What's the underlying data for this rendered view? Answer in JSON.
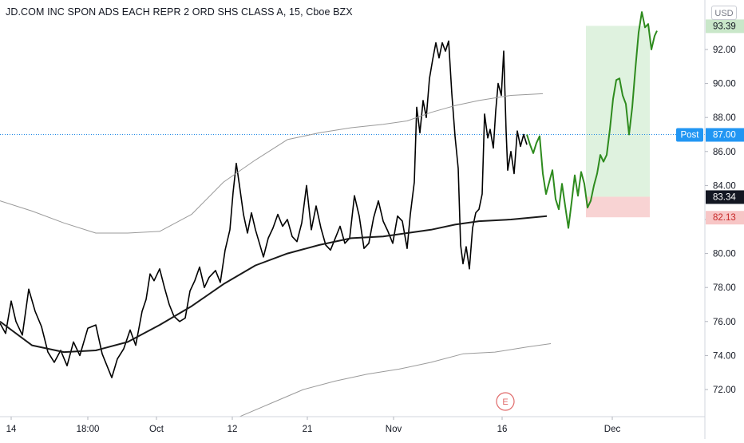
{
  "header": {
    "title": "JD.COM INC SPON ADS EACH REPR 2 ORD SHS CLASS A, 15, Cboe BZX",
    "currency": "USD"
  },
  "colors": {
    "price_line": "#000000",
    "moving_average": "#1a1a1a",
    "envelope": "#9a9a9a",
    "projection": "#2e8b1e",
    "target_zone": "#dff2df",
    "stop_zone": "#f8d3d3",
    "axis_text": "#131722",
    "grid": "#d1d4dc",
    "post_badge": "#2196f3",
    "last_price_badge": "#131722",
    "stop_badge": "#f7c6c6",
    "target_badge": "#c9e7c9",
    "earnings_marker": "#e06a6a"
  },
  "markers": {
    "earnings": "E",
    "post_label": "Post"
  },
  "chart_data": {
    "type": "line",
    "title": "JD.COM INC SPON ADS EACH REPR 2 ORD SHS CLASS A, 15, Cboe BZX",
    "xlabel": "",
    "ylabel": "",
    "ylim": [
      70.5,
      95.5
    ],
    "grid": false,
    "x_ticks": [
      "14",
      "18:00",
      "Oct",
      "12",
      "21",
      "Nov",
      "16",
      "Dec"
    ],
    "y_ticks": [
      "72.00",
      "74.00",
      "76.00",
      "78.00",
      "80.00",
      "82.00",
      "84.00",
      "86.00",
      "88.00",
      "90.00",
      "92.00"
    ],
    "series": [
      {
        "key": "price",
        "values": [
          [
            0,
            75.9
          ],
          [
            7,
            75.3
          ],
          [
            14,
            77.2
          ],
          [
            20,
            76.0
          ],
          [
            28,
            75.2
          ],
          [
            36,
            77.9
          ],
          [
            44,
            76.6
          ],
          [
            52,
            75.7
          ],
          [
            60,
            74.2
          ],
          [
            68,
            73.6
          ],
          [
            76,
            74.3
          ],
          [
            84,
            73.4
          ],
          [
            92,
            74.8
          ],
          [
            100,
            74.0
          ],
          [
            110,
            75.6
          ],
          [
            120,
            75.8
          ],
          [
            128,
            74.1
          ],
          [
            134,
            73.4
          ],
          [
            140,
            72.7
          ],
          [
            147,
            73.8
          ],
          [
            155,
            74.4
          ],
          [
            163,
            75.5
          ],
          [
            170,
            74.6
          ],
          [
            178,
            76.6
          ],
          [
            183,
            77.3
          ],
          [
            188,
            78.8
          ],
          [
            193,
            78.4
          ],
          [
            200,
            79.1
          ],
          [
            206,
            78.0
          ],
          [
            212,
            77.0
          ],
          [
            218,
            76.3
          ],
          [
            225,
            76.0
          ],
          [
            232,
            76.2
          ],
          [
            238,
            77.8
          ],
          [
            244,
            78.4
          ],
          [
            250,
            79.2
          ],
          [
            256,
            78.0
          ],
          [
            262,
            78.6
          ],
          [
            270,
            79.0
          ],
          [
            276,
            78.3
          ],
          [
            282,
            80.2
          ],
          [
            288,
            81.4
          ],
          [
            292,
            83.6
          ],
          [
            296,
            85.3
          ],
          [
            300,
            84.0
          ],
          [
            305,
            82.3
          ],
          [
            310,
            81.2
          ],
          [
            315,
            82.4
          ],
          [
            320,
            81.4
          ],
          [
            325,
            80.6
          ],
          [
            330,
            79.8
          ],
          [
            336,
            80.9
          ],
          [
            342,
            81.5
          ],
          [
            348,
            82.3
          ],
          [
            354,
            81.6
          ],
          [
            360,
            82.0
          ],
          [
            366,
            81.0
          ],
          [
            372,
            80.7
          ],
          [
            378,
            81.8
          ],
          [
            384,
            84.0
          ],
          [
            390,
            81.4
          ],
          [
            396,
            82.8
          ],
          [
            402,
            81.5
          ],
          [
            408,
            80.5
          ],
          [
            414,
            80.2
          ],
          [
            420,
            80.9
          ],
          [
            426,
            81.6
          ],
          [
            432,
            80.6
          ],
          [
            438,
            80.9
          ],
          [
            444,
            83.4
          ],
          [
            450,
            82.2
          ],
          [
            456,
            80.3
          ],
          [
            462,
            80.6
          ],
          [
            468,
            82.1
          ],
          [
            474,
            83.1
          ],
          [
            480,
            81.9
          ],
          [
            486,
            81.3
          ],
          [
            492,
            80.6
          ],
          [
            498,
            82.2
          ],
          [
            504,
            81.9
          ],
          [
            510,
            80.3
          ],
          [
            514,
            82.3
          ],
          [
            519,
            84.2
          ],
          [
            522,
            88.6
          ],
          [
            526,
            87.1
          ],
          [
            530,
            89.0
          ],
          [
            534,
            88.0
          ],
          [
            538,
            90.3
          ],
          [
            542,
            91.4
          ],
          [
            546,
            92.4
          ],
          [
            550,
            91.5
          ],
          [
            554,
            92.4
          ],
          [
            558,
            91.9
          ],
          [
            562,
            92.5
          ],
          [
            566,
            89.4
          ],
          [
            570,
            86.9
          ],
          [
            574,
            85.0
          ],
          [
            577,
            80.5
          ],
          [
            580,
            79.4
          ],
          [
            584,
            80.4
          ],
          [
            588,
            79.1
          ],
          [
            592,
            81.5
          ],
          [
            596,
            82.4
          ],
          [
            600,
            82.6
          ],
          [
            604,
            83.5
          ],
          [
            607,
            88.2
          ],
          [
            611,
            86.8
          ],
          [
            614,
            87.3
          ],
          [
            618,
            86.2
          ],
          [
            621,
            88.4
          ],
          [
            624,
            90.0
          ],
          [
            628,
            89.3
          ],
          [
            631,
            91.9
          ],
          [
            634,
            87.2
          ],
          [
            636,
            84.9
          ],
          [
            640,
            86.0
          ],
          [
            644,
            84.7
          ],
          [
            648,
            87.2
          ],
          [
            652,
            86.3
          ],
          [
            656,
            87.0
          ],
          [
            660,
            86.4
          ]
        ]
      },
      {
        "key": "ma",
        "values": [
          [
            0,
            76.0
          ],
          [
            40,
            74.6
          ],
          [
            80,
            74.2
          ],
          [
            120,
            74.3
          ],
          [
            160,
            74.8
          ],
          [
            200,
            75.8
          ],
          [
            240,
            76.9
          ],
          [
            280,
            78.2
          ],
          [
            320,
            79.3
          ],
          [
            360,
            80.0
          ],
          [
            400,
            80.5
          ],
          [
            440,
            80.9
          ],
          [
            480,
            81.0
          ],
          [
            510,
            81.2
          ],
          [
            540,
            81.4
          ],
          [
            570,
            81.7
          ],
          [
            600,
            81.9
          ],
          [
            640,
            82.0
          ],
          [
            685,
            82.2
          ]
        ]
      },
      {
        "key": "env_upper",
        "values": [
          [
            0,
            83.1
          ],
          [
            40,
            82.5
          ],
          [
            80,
            81.8
          ],
          [
            120,
            81.2
          ],
          [
            160,
            81.2
          ],
          [
            200,
            81.3
          ],
          [
            240,
            82.3
          ],
          [
            280,
            84.2
          ],
          [
            320,
            85.5
          ],
          [
            360,
            86.7
          ],
          [
            400,
            87.1
          ],
          [
            440,
            87.4
          ],
          [
            480,
            87.6
          ],
          [
            510,
            87.8
          ],
          [
            540,
            88.3
          ],
          [
            570,
            88.7
          ],
          [
            600,
            89.0
          ],
          [
            640,
            89.3
          ],
          [
            680,
            89.4
          ]
        ]
      },
      {
        "key": "env_lower",
        "values": [
          [
            300,
            70.4
          ],
          [
            340,
            71.2
          ],
          [
            380,
            72.0
          ],
          [
            420,
            72.5
          ],
          [
            460,
            72.9
          ],
          [
            500,
            73.2
          ],
          [
            540,
            73.6
          ],
          [
            580,
            74.1
          ],
          [
            620,
            74.2
          ],
          [
            660,
            74.5
          ],
          [
            690,
            74.7
          ]
        ]
      },
      {
        "key": "projection",
        "values": [
          [
            660,
            87.0
          ],
          [
            664,
            86.4
          ],
          [
            668,
            85.9
          ],
          [
            672,
            86.5
          ],
          [
            676,
            86.9
          ],
          [
            680,
            84.7
          ],
          [
            684,
            83.5
          ],
          [
            688,
            84.2
          ],
          [
            692,
            84.9
          ],
          [
            696,
            83.2
          ],
          [
            700,
            82.6
          ],
          [
            704,
            84.1
          ],
          [
            708,
            82.8
          ],
          [
            712,
            81.5
          ],
          [
            716,
            83.0
          ],
          [
            720,
            84.6
          ],
          [
            724,
            83.4
          ],
          [
            728,
            84.8
          ],
          [
            732,
            84.1
          ],
          [
            736,
            82.7
          ],
          [
            740,
            83.1
          ],
          [
            744,
            84.0
          ],
          [
            748,
            84.7
          ],
          [
            752,
            85.8
          ],
          [
            756,
            85.4
          ],
          [
            760,
            85.8
          ],
          [
            764,
            87.3
          ],
          [
            768,
            89.1
          ],
          [
            772,
            90.2
          ],
          [
            776,
            90.3
          ],
          [
            780,
            89.3
          ],
          [
            784,
            88.8
          ],
          [
            788,
            87.0
          ],
          [
            792,
            88.6
          ],
          [
            796,
            90.9
          ],
          [
            800,
            93.0
          ],
          [
            804,
            94.2
          ],
          [
            808,
            93.3
          ],
          [
            812,
            93.5
          ],
          [
            816,
            92.0
          ],
          [
            820,
            92.8
          ],
          [
            823,
            93.1
          ]
        ]
      }
    ],
    "price_levels": {
      "post": 87.0,
      "last": 83.34,
      "target": 93.39,
      "stop": 82.13
    },
    "position": {
      "entry": 83.34,
      "target": 93.39,
      "stop": 82.13
    }
  }
}
